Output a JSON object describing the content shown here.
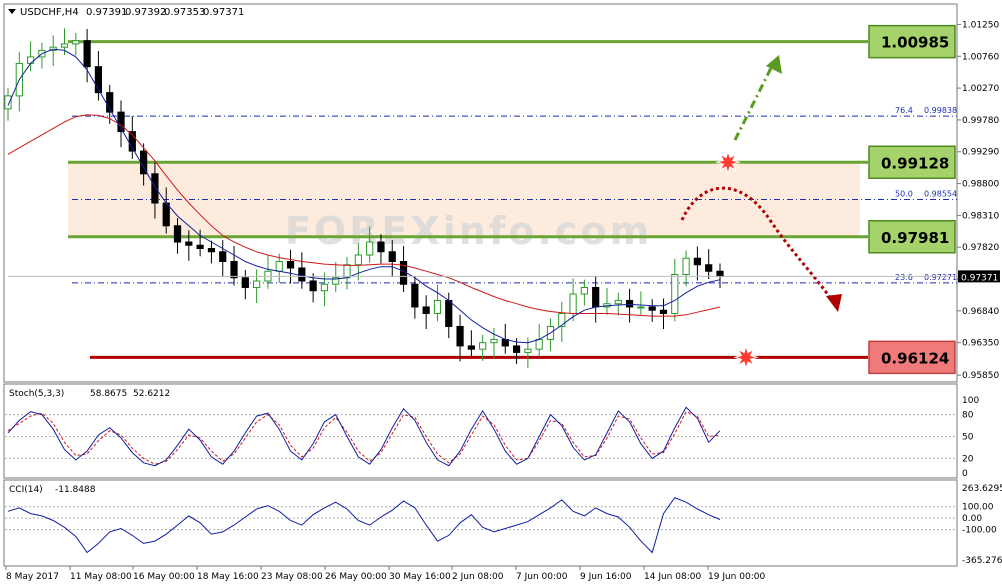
{
  "chart_data": [
    {
      "type": "candlestick",
      "symbol": "USDCHF,H4",
      "ohlc_header": [
        "0.97391",
        "0.97392",
        "0.97353",
        "0.97371"
      ],
      "current_price": "0.97371",
      "y_ticks": [
        "1.01250",
        "1.00760",
        "1.00270",
        "0.99780",
        "0.99290",
        "0.98800",
        "0.98310",
        "0.97820",
        "0.97330",
        "0.96840",
        "0.96350",
        "0.95850"
      ],
      "x_labels": [
        "8 May 2017",
        "11 May 08:00",
        "16 May 00:00",
        "18 May 16:00",
        "23 May 08:00",
        "26 May 00:00",
        "30 May 16:00",
        "2 Jun 08:00",
        "7 Jun 00:00",
        "9 Jun 16:00",
        "14 Jun 08:00",
        "19 Jun 00:00"
      ],
      "ylim": [
        0.9576,
        1.0138
      ],
      "levels": [
        {
          "label": "1.00985",
          "value": 1.00985,
          "role": "resistance"
        },
        {
          "label": "0.99128",
          "value": 0.99128,
          "role": "resistance"
        },
        {
          "label": "0.97981",
          "value": 0.97981,
          "role": "support"
        },
        {
          "label": "0.96124",
          "value": 0.96124,
          "role": "support"
        }
      ],
      "fibonacci": [
        {
          "label": "76.4",
          "value_label": "0.99838",
          "value": 0.99838
        },
        {
          "label": "50.0",
          "value_label": "0.98554",
          "value": 0.98554
        },
        {
          "label": "23.6",
          "value_label": "0.97271",
          "value": 0.97271
        }
      ],
      "zone": {
        "from": 0.97981,
        "to": 0.99128
      },
      "close_path": [
        1.0015,
        1.0065,
        1.0075,
        1.0085,
        1.009,
        1.0095,
        1.01,
        1.006,
        1.002,
        0.999,
        0.996,
        0.993,
        0.9895,
        0.985,
        0.9815,
        0.979,
        0.9785,
        0.978,
        0.9775,
        0.976,
        0.9735,
        0.972,
        0.973,
        0.9745,
        0.976,
        0.975,
        0.973,
        0.9715,
        0.9725,
        0.9735,
        0.9755,
        0.977,
        0.979,
        0.9775,
        0.976,
        0.9725,
        0.969,
        0.968,
        0.97,
        0.966,
        0.963,
        0.9625,
        0.9635,
        0.964,
        0.963,
        0.962,
        0.9625,
        0.964,
        0.966,
        0.968,
        0.971,
        0.972,
        0.969,
        0.9695,
        0.97,
        0.969,
        0.969,
        0.9685,
        0.968,
        0.974,
        0.9765,
        0.9755,
        0.9745,
        0.9737
      ],
      "ma_fast": [
        1.0,
        1.004,
        1.0065,
        1.008,
        1.0087,
        1.0085,
        1.0075,
        1.0055,
        1.0025,
        0.9995,
        0.9965,
        0.9935,
        0.9905,
        0.9875,
        0.985,
        0.983,
        0.9815,
        0.98,
        0.979,
        0.978,
        0.977,
        0.976,
        0.9753,
        0.9748,
        0.9745,
        0.9742,
        0.9738,
        0.9735,
        0.9733,
        0.9733,
        0.9735,
        0.9742,
        0.9748,
        0.9752,
        0.9752,
        0.9745,
        0.9735,
        0.9722,
        0.9712,
        0.97,
        0.9685,
        0.967,
        0.9658,
        0.9648,
        0.964,
        0.9636,
        0.9635,
        0.964,
        0.965,
        0.9662,
        0.9675,
        0.9685,
        0.969,
        0.9692,
        0.9693,
        0.9694,
        0.9693,
        0.9692,
        0.9692,
        0.97,
        0.9712,
        0.9722,
        0.9728,
        0.9732
      ],
      "ma_slow": [
        0.9925,
        0.9935,
        0.9945,
        0.9955,
        0.9965,
        0.9975,
        0.9983,
        0.9986,
        0.9985,
        0.998,
        0.997,
        0.9955,
        0.9935,
        0.9915,
        0.9892,
        0.987,
        0.985,
        0.9832,
        0.9815,
        0.98,
        0.979,
        0.9782,
        0.9775,
        0.977,
        0.9766,
        0.9763,
        0.976,
        0.9758,
        0.9756,
        0.9755,
        0.9754,
        0.9754,
        0.9755,
        0.9756,
        0.9756,
        0.9754,
        0.975,
        0.9745,
        0.974,
        0.9735,
        0.9728,
        0.972,
        0.9713,
        0.9706,
        0.97,
        0.9695,
        0.969,
        0.9686,
        0.9683,
        0.9681,
        0.968,
        0.968,
        0.968,
        0.968,
        0.9679,
        0.9678,
        0.9677,
        0.9676,
        0.9676,
        0.9676,
        0.9678,
        0.9682,
        0.9686,
        0.969
      ]
    },
    {
      "type": "line",
      "name": "Stoch(5,3,3)",
      "header_values": [
        "58.8675",
        "52.6212"
      ],
      "y_ticks": [
        "100",
        "80",
        "50",
        "20",
        "0"
      ],
      "ylim": [
        0,
        100
      ],
      "main": [
        55,
        72,
        84,
        80,
        60,
        32,
        18,
        30,
        52,
        62,
        48,
        28,
        14,
        10,
        18,
        38,
        60,
        45,
        22,
        12,
        30,
        55,
        78,
        82,
        60,
        30,
        18,
        40,
        70,
        80,
        50,
        22,
        12,
        32,
        62,
        88,
        72,
        42,
        18,
        10,
        30,
        60,
        85,
        60,
        30,
        12,
        20,
        50,
        80,
        65,
        35,
        18,
        25,
        55,
        85,
        70,
        40,
        20,
        30,
        62,
        90,
        75,
        42,
        58
      ],
      "signal": [
        58,
        68,
        78,
        82,
        68,
        42,
        24,
        26,
        44,
        58,
        52,
        34,
        20,
        12,
        16,
        32,
        52,
        48,
        30,
        16,
        26,
        48,
        70,
        80,
        66,
        38,
        22,
        34,
        62,
        76,
        56,
        30,
        16,
        28,
        54,
        80,
        76,
        50,
        26,
        14,
        26,
        52,
        78,
        66,
        38,
        18,
        20,
        44,
        72,
        68,
        42,
        22,
        24,
        48,
        78,
        74,
        48,
        26,
        28,
        54,
        84,
        78,
        50,
        52
      ]
    },
    {
      "type": "line",
      "name": "CCI(14)",
      "header_values": [
        "-11.8488"
      ],
      "y_ticks": [
        "263.6295",
        "100.00",
        "0.00",
        "-100.00",
        "-365.2768"
      ],
      "ylim": [
        -365.2768,
        263.6295
      ],
      "values": [
        60,
        90,
        40,
        20,
        -20,
        -80,
        -160,
        -300,
        -220,
        -120,
        -90,
        -150,
        -220,
        -200,
        -140,
        -60,
        20,
        -40,
        -140,
        -120,
        -60,
        10,
        80,
        110,
        60,
        -20,
        -60,
        30,
        90,
        140,
        80,
        -20,
        -60,
        10,
        70,
        150,
        90,
        -60,
        -200,
        -150,
        -40,
        30,
        -80,
        -120,
        -90,
        -60,
        -30,
        30,
        90,
        160,
        60,
        20,
        90,
        40,
        10,
        -80,
        -200,
        -300,
        40,
        180,
        140,
        80,
        30,
        -11.85
      ]
    }
  ],
  "watermark": "FOREXinfo.com"
}
